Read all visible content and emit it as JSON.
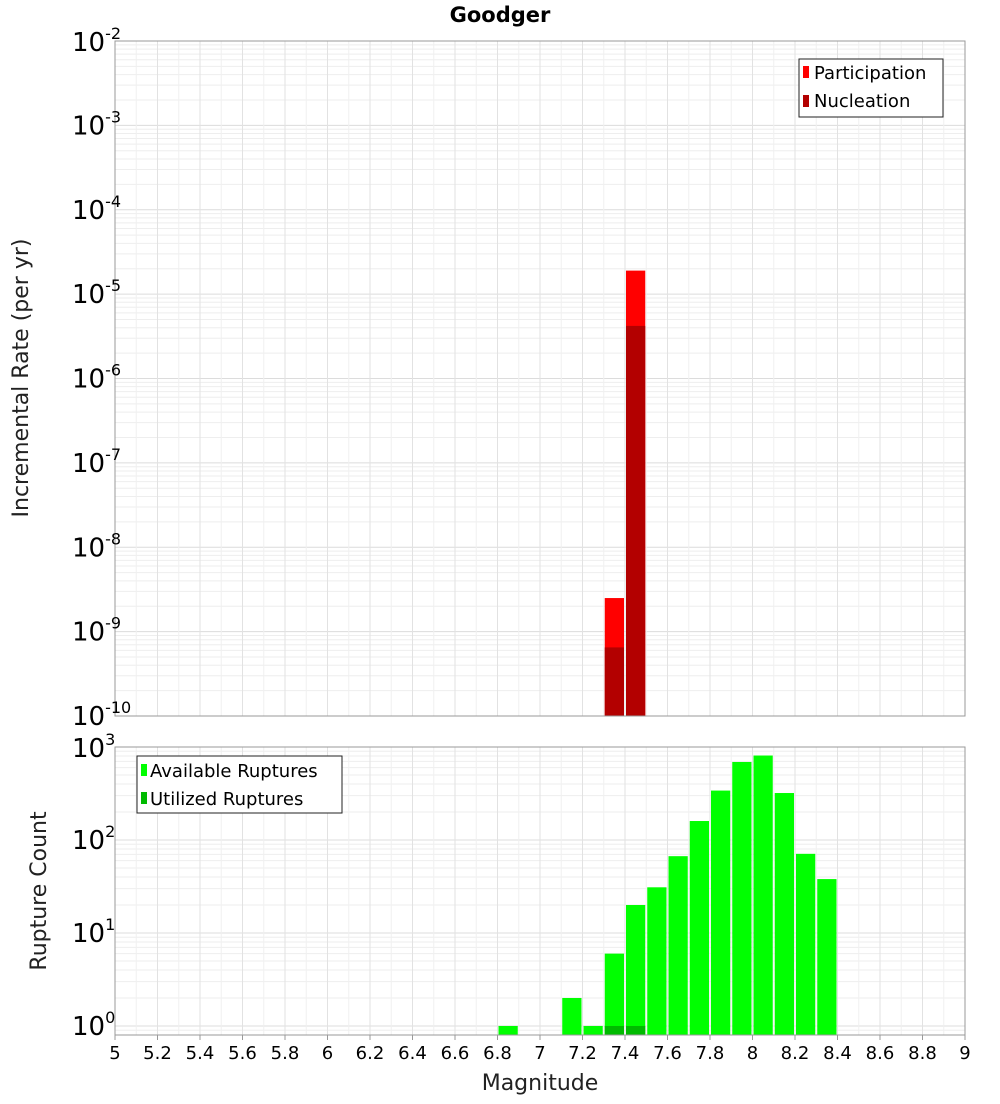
{
  "chart_data": [
    {
      "type": "bar",
      "title": "Goodger",
      "xlabel": "",
      "ylabel": "Incremental Rate (per yr)",
      "yscale": "log",
      "ylim": [
        1e-10,
        0.01
      ],
      "xlim": [
        5,
        9
      ],
      "bin_width": 0.1,
      "ytick_exponents": [
        "-2",
        "-3",
        "-4",
        "-5",
        "-6",
        "-7",
        "-8",
        "-9",
        "-10"
      ],
      "legend": {
        "placement": "top-right",
        "entries": [
          "Participation",
          "Nucleation"
        ]
      },
      "grid": true,
      "series": [
        {
          "name": "Participation",
          "color": "#ff0000",
          "x": [
            7.35,
            7.45
          ],
          "values": [
            2.5e-09,
            1.9e-05
          ]
        },
        {
          "name": "Nucleation",
          "color": "#b30000",
          "x": [
            7.35,
            7.45
          ],
          "values": [
            6.5e-10,
            4.2e-06
          ]
        }
      ]
    },
    {
      "type": "bar",
      "title": "",
      "xlabel": "Magnitude",
      "ylabel": "Rupture Count",
      "yscale": "log",
      "ylim": [
        0.8,
        1000
      ],
      "xlim": [
        5,
        9
      ],
      "bin_width": 0.1,
      "ytick_exponents": [
        "3",
        "2",
        "1",
        "0"
      ],
      "xticks": [
        "5",
        "5.2",
        "5.4",
        "5.6",
        "5.8",
        "6",
        "6.2",
        "6.4",
        "6.6",
        "6.8",
        "7",
        "7.2",
        "7.4",
        "7.6",
        "7.8",
        "8",
        "8.2",
        "8.4",
        "8.6",
        "8.8",
        "9"
      ],
      "legend": {
        "placement": "top-left",
        "entries": [
          "Available Ruptures",
          "Utilized Ruptures"
        ]
      },
      "grid": true,
      "series": [
        {
          "name": "Available Ruptures",
          "color": "#00ff00",
          "x": [
            6.85,
            7.15,
            7.25,
            7.35,
            7.45,
            7.55,
            7.65,
            7.75,
            7.85,
            7.95,
            8.05,
            8.15,
            8.25,
            8.35
          ],
          "values": [
            1,
            2,
            1,
            6,
            20,
            31,
            67,
            160,
            340,
            690,
            810,
            320,
            71,
            38
          ]
        },
        {
          "name": "Utilized Ruptures",
          "color": "#00bb00",
          "x": [
            7.35,
            7.45
          ],
          "values": [
            1,
            1
          ]
        }
      ]
    }
  ]
}
